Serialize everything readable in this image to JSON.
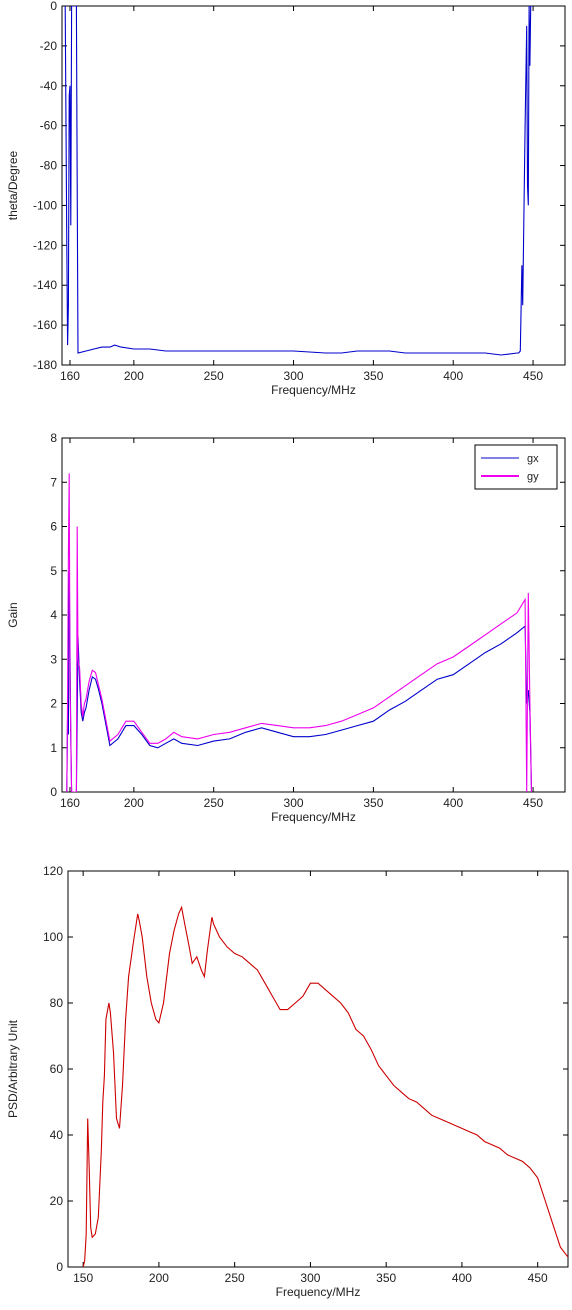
{
  "chart_data": [
    {
      "type": "line",
      "xlabel": "Frequency/MHz",
      "ylabel": "theta/Degree",
      "xlim": [
        155,
        470
      ],
      "ylim": [
        -180,
        0
      ],
      "xticks": [
        160,
        200,
        250,
        300,
        350,
        400,
        450
      ],
      "yticks": [
        0,
        -20,
        -40,
        -60,
        -80,
        -100,
        -120,
        -140,
        -160,
        -180
      ],
      "grid": false,
      "legend": null,
      "series": [
        {
          "color": "#0000cc",
          "x": [
            157,
            158,
            158.5,
            159,
            159.5,
            160,
            160.5,
            161,
            162,
            163,
            164,
            164.5,
            165,
            170,
            175,
            180,
            185,
            188,
            192,
            200,
            210,
            220,
            250,
            280,
            300,
            320,
            330,
            340,
            360,
            370,
            380,
            400,
            420,
            430,
            440,
            441,
            442,
            443,
            443.5,
            444,
            445,
            446,
            446.5,
            447,
            447.5,
            448,
            448.5,
            450
          ],
          "values": [
            0,
            -120,
            -170,
            -150,
            -45,
            -40,
            -110,
            0,
            0,
            0,
            0,
            -90,
            -174,
            -173,
            -172,
            -171,
            -171,
            -170,
            -171,
            -172,
            -172,
            -173,
            -173,
            -173,
            -173,
            -174,
            -174,
            -173,
            -173,
            -174,
            -174,
            -174,
            -174,
            -175,
            -174,
            -174,
            -173,
            -130,
            -150,
            -120,
            -60,
            -10,
            -90,
            -100,
            0,
            -30,
            0,
            0
          ]
        }
      ]
    },
    {
      "type": "line",
      "xlabel": "Frequency/MHz",
      "ylabel": "Gain",
      "xlim": [
        155,
        470
      ],
      "ylim": [
        0,
        8
      ],
      "xticks": [
        160,
        200,
        250,
        300,
        350,
        400,
        450
      ],
      "yticks": [
        0,
        1,
        2,
        3,
        4,
        5,
        6,
        7,
        8
      ],
      "grid": false,
      "legend": "top-right",
      "series": [
        {
          "name": "gx",
          "color": "#0000cc",
          "x": [
            158,
            158.5,
            159,
            159.5,
            160,
            160.5,
            161,
            161.5,
            164,
            165,
            166,
            167,
            168,
            169,
            170,
            172,
            174,
            176,
            178,
            180,
            185,
            190,
            195,
            200,
            205,
            210,
            215,
            220,
            225,
            230,
            240,
            250,
            260,
            270,
            280,
            290,
            300,
            310,
            320,
            330,
            340,
            350,
            360,
            370,
            380,
            390,
            400,
            410,
            420,
            430,
            440,
            445,
            446,
            447,
            448,
            449
          ],
          "values": [
            0,
            1.8,
            1.3,
            5.0,
            3.2,
            1.2,
            0,
            0,
            0,
            3.5,
            2.5,
            1.8,
            1.6,
            1.8,
            1.9,
            2.3,
            2.6,
            2.55,
            2.3,
            2.0,
            1.05,
            1.2,
            1.5,
            1.5,
            1.3,
            1.05,
            1.0,
            1.1,
            1.2,
            1.1,
            1.05,
            1.15,
            1.2,
            1.35,
            1.45,
            1.35,
            1.25,
            1.25,
            1.3,
            1.4,
            1.5,
            1.6,
            1.85,
            2.05,
            2.3,
            2.55,
            2.65,
            2.9,
            3.15,
            3.35,
            3.6,
            3.75,
            2.0,
            2.3,
            1.8,
            0
          ]
        },
        {
          "name": "gy",
          "color": "#ee00ee",
          "x": [
            158,
            158.5,
            159,
            159.5,
            160,
            160.5,
            161,
            161.5,
            164,
            164.5,
            165,
            166,
            167,
            168,
            169,
            170,
            172,
            174,
            176,
            178,
            180,
            185,
            190,
            195,
            200,
            205,
            210,
            215,
            220,
            225,
            230,
            240,
            250,
            260,
            270,
            280,
            290,
            300,
            310,
            320,
            330,
            340,
            350,
            360,
            370,
            380,
            390,
            400,
            410,
            420,
            430,
            440,
            445,
            446,
            447,
            448,
            449
          ],
          "values": [
            0,
            2.2,
            5.4,
            7.2,
            2.5,
            1.3,
            0,
            0,
            0,
            6.0,
            3.0,
            2.8,
            2.0,
            1.7,
            2.0,
            2.1,
            2.5,
            2.75,
            2.7,
            2.4,
            2.1,
            1.15,
            1.3,
            1.6,
            1.6,
            1.35,
            1.1,
            1.1,
            1.2,
            1.35,
            1.25,
            1.2,
            1.3,
            1.35,
            1.45,
            1.55,
            1.5,
            1.45,
            1.45,
            1.5,
            1.6,
            1.75,
            1.9,
            2.15,
            2.4,
            2.65,
            2.9,
            3.05,
            3.3,
            3.55,
            3.8,
            4.05,
            4.35,
            0,
            4.5,
            2.0,
            0
          ]
        }
      ]
    },
    {
      "type": "line",
      "xlabel": "Frequency/MHz",
      "ylabel": "PSD/Arbitrary Unit",
      "xlim": [
        140,
        470
      ],
      "ylim": [
        0,
        120
      ],
      "xticks": [
        150,
        200,
        250,
        300,
        350,
        400,
        450
      ],
      "yticks": [
        0,
        20,
        40,
        60,
        80,
        100,
        120
      ],
      "grid": false,
      "legend": null,
      "series": [
        {
          "color": "#cc0000",
          "x": [
            150,
            151,
            152,
            153,
            154,
            155,
            156,
            158,
            160,
            162,
            163,
            164,
            165,
            167,
            168,
            170,
            172,
            174,
            176,
            178,
            180,
            183,
            186,
            187,
            189,
            192,
            195,
            198,
            200,
            203,
            207,
            210,
            213,
            215,
            217,
            220,
            222,
            225,
            228,
            230,
            232,
            235,
            236,
            238,
            240,
            245,
            250,
            255,
            260,
            265,
            270,
            275,
            280,
            285,
            290,
            295,
            300,
            305,
            310,
            315,
            320,
            325,
            330,
            335,
            340,
            345,
            350,
            355,
            360,
            365,
            370,
            375,
            380,
            385,
            390,
            395,
            400,
            405,
            410,
            415,
            420,
            425,
            430,
            435,
            440,
            445,
            450,
            455,
            460,
            465,
            470
          ],
          "values": [
            0,
            2,
            10,
            45,
            30,
            12,
            9,
            10,
            15,
            35,
            50,
            58,
            75,
            80,
            77,
            65,
            45,
            42,
            55,
            75,
            88,
            98,
            107,
            105,
            100,
            88,
            80,
            75,
            74,
            80,
            95,
            102,
            107,
            109,
            104,
            97,
            92,
            94,
            90,
            88,
            96,
            106,
            104,
            102,
            100,
            97,
            95,
            94,
            92,
            90,
            86,
            82,
            78,
            78,
            80,
            82,
            86,
            86,
            84,
            82,
            80,
            77,
            72,
            70,
            66,
            61,
            58,
            55,
            53,
            51,
            50,
            48,
            46,
            45,
            44,
            43,
            42,
            41,
            40,
            38,
            37,
            36,
            34,
            33,
            32,
            30,
            27,
            20,
            13,
            6,
            3
          ]
        }
      ]
    }
  ]
}
